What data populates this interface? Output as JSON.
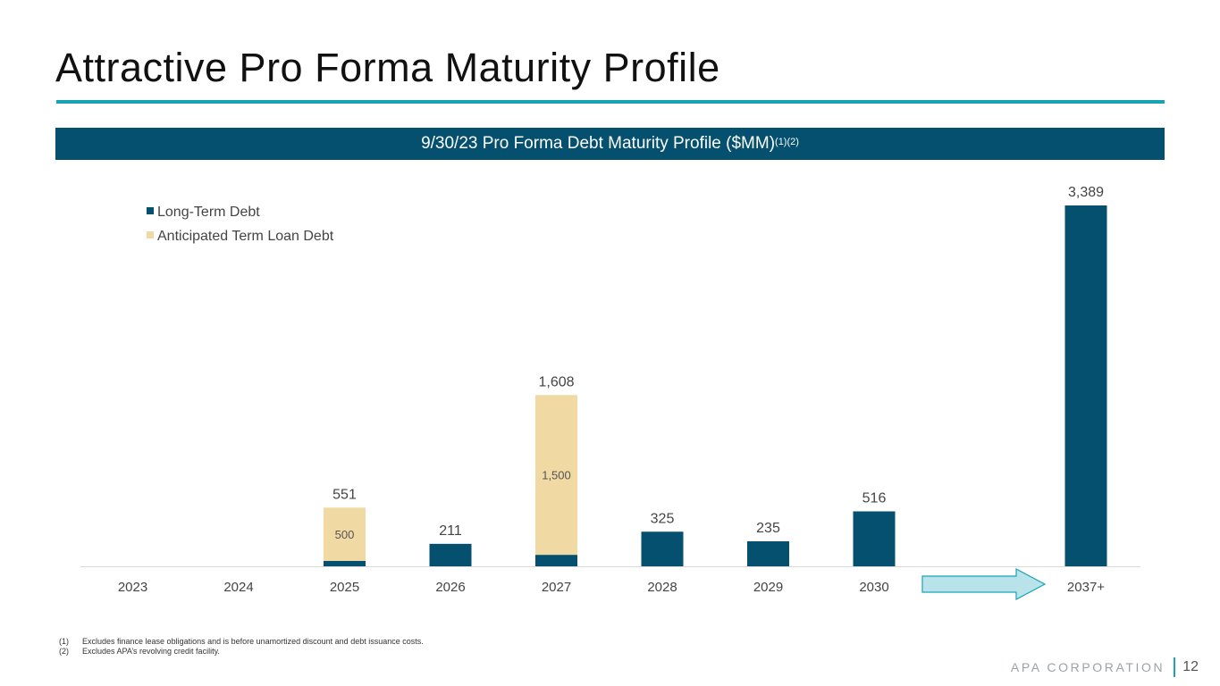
{
  "page": {
    "title": "Attractive Pro Forma Maturity Profile",
    "banner_title": "9/30/23 Pro Forma Debt Maturity Profile ($MM)",
    "banner_superscript": "(1)(2)",
    "footnotes": [
      {
        "num": "(1)",
        "text": "Excludes finance lease obligations and is before unamortized discount and debt issuance costs."
      },
      {
        "num": "(2)",
        "text": "Excludes APA’s revolving credit facility."
      }
    ],
    "brand": "APA CORPORATION",
    "page_number": "12"
  },
  "colors": {
    "long_term": "#04506e",
    "term_loan": "#f0d9a3",
    "accent": "#1aa3b5",
    "arrow_fill": "#b8e3ea"
  },
  "chart_data": {
    "type": "bar",
    "stacked": true,
    "title": "9/30/23 Pro Forma Debt Maturity Profile ($MM)",
    "categories": [
      "2023",
      "2024",
      "2025",
      "2026",
      "2027",
      "2028",
      "2029",
      "2030",
      "",
      "2037+"
    ],
    "series": [
      {
        "name": "Long-Term Debt",
        "values": [
          0,
          0,
          51,
          211,
          108,
          325,
          235,
          516,
          null,
          3389
        ]
      },
      {
        "name": "Anticipated Term Loan Debt",
        "values": [
          0,
          0,
          500,
          0,
          1500,
          0,
          0,
          0,
          null,
          0
        ]
      }
    ],
    "totals": [
      "",
      "",
      "551",
      "211",
      "1,608",
      "325",
      "235",
      "516",
      "",
      "3,389"
    ],
    "segment_labels": [
      "",
      "",
      "500",
      "",
      "1,500",
      "",
      "",
      "",
      "",
      ""
    ],
    "legend": [
      "Long-Term Debt",
      "Anticipated Term Loan Debt"
    ],
    "legend_position": "top-left",
    "ylim": [
      0,
      3389
    ],
    "xlabel": "",
    "ylabel": "",
    "grid": false
  }
}
